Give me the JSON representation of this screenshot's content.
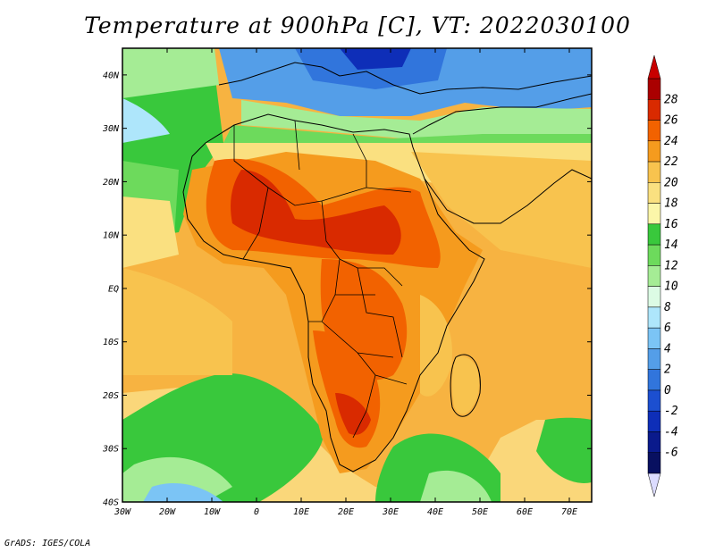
{
  "title": "Temperature at 900hPa [C], VT: 2022030100",
  "credit": "GrADS: IGES/COLA",
  "map": {
    "lat_labels": [
      "40N",
      "30N",
      "20N",
      "10N",
      "EQ",
      "10S",
      "20S",
      "30S",
      "40S"
    ],
    "lon_labels": [
      "30W",
      "20W",
      "10W",
      "0",
      "10E",
      "20E",
      "30E",
      "40E",
      "50E",
      "60E",
      "70E"
    ],
    "lat_range": [
      -40,
      45
    ],
    "lon_range": [
      -30,
      75
    ]
  },
  "colorbar": {
    "labels": [
      "28",
      "26",
      "24",
      "22",
      "20",
      "18",
      "16",
      "14",
      "12",
      "10",
      "8",
      "6",
      "4",
      "2",
      "0",
      "-2",
      "-4",
      "-6"
    ],
    "colors": [
      "#aa0000",
      "#d92a00",
      "#f26200",
      "#f59b1e",
      "#f8c34e",
      "#fae080",
      "#fbf6a9",
      "#39c83c",
      "#6dda5c",
      "#a5ec95",
      "#dcfbe4",
      "#aee6fb",
      "#7bc4f5",
      "#549ee8",
      "#3175dc",
      "#1c4fd0",
      "#0e2eb8",
      "#0a1a8c",
      "#081060"
    ],
    "top_arrow_color": "#c80000",
    "bottom_arrow_color": "#dcdcff"
  },
  "colors": {
    "ocean_warm": "#f7b341",
    "ocean_mild": "#fad77a",
    "ocean_cool": "#9ee38f",
    "land_hot": "#d72a00",
    "land_warm": "#f07800",
    "sea_cold": "#2c7ce0"
  }
}
